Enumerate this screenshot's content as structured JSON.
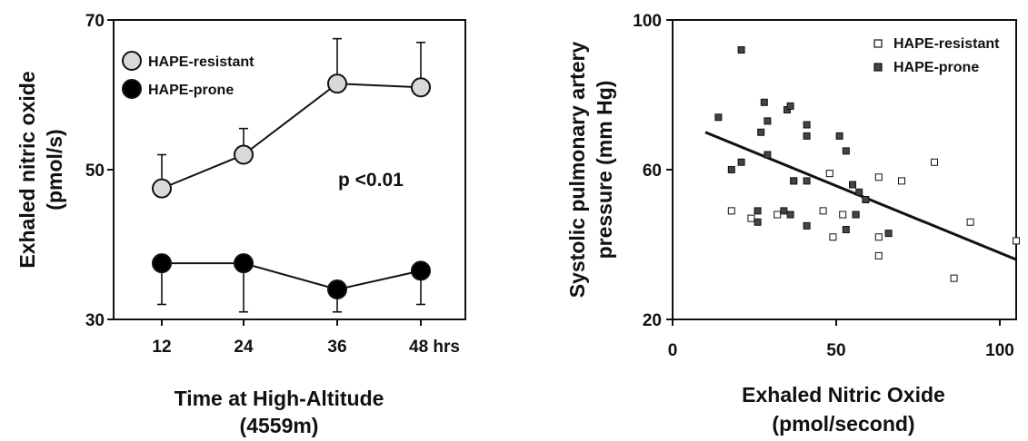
{
  "chart_data": [
    {
      "type": "line",
      "xlabel": "Time at High-Altitude",
      "xlabel_line2": "(4559m)",
      "ylabel": "Exhaled nitric oxide",
      "ylabel_line2": "(pmol/s)",
      "x": [
        12,
        24,
        36,
        48
      ],
      "x_tick_labels": [
        "12",
        "24",
        "36",
        "48 hrs"
      ],
      "y_ticks": [
        30,
        50,
        70
      ],
      "ylim": [
        30,
        70
      ],
      "annotation": "p <0.01",
      "legend_position": "top-left",
      "series": [
        {
          "name": "HAPE-resistant",
          "color": "#d9d9d9",
          "values": [
            47.5,
            52.0,
            61.5,
            61.0
          ],
          "error": [
            4.5,
            3.5,
            6.0,
            6.0
          ]
        },
        {
          "name": "HAPE-prone",
          "color": "#000000",
          "values": [
            37.5,
            37.5,
            34.0,
            36.5
          ],
          "error": [
            5.5,
            6.5,
            3.0,
            4.5
          ]
        }
      ]
    },
    {
      "type": "scatter",
      "xlabel": "Exhaled Nitric Oxide",
      "xlabel_line2": "(pmol/second)",
      "ylabel": "Systolic pulmonary artery",
      "ylabel_line2": "pressure (mm Hg)",
      "x_ticks": [
        0,
        50,
        100
      ],
      "y_ticks": [
        20,
        60,
        100
      ],
      "xlim": [
        0,
        105
      ],
      "ylim": [
        20,
        100
      ],
      "legend_position": "top-right",
      "series": [
        {
          "name": "HAPE-resistant",
          "color": "#ffffff",
          "points": [
            [
              18,
              49
            ],
            [
              24,
              47
            ],
            [
              32,
              48
            ],
            [
              37,
              57
            ],
            [
              46,
              49
            ],
            [
              49,
              42
            ],
            [
              48,
              59
            ],
            [
              52,
              48
            ],
            [
              56,
              48
            ],
            [
              63,
              58
            ],
            [
              63,
              42
            ],
            [
              63,
              37
            ],
            [
              70,
              57
            ],
            [
              80,
              62
            ],
            [
              86,
              31
            ],
            [
              91,
              46
            ],
            [
              105,
              41
            ]
          ]
        },
        {
          "name": "HAPE-prone",
          "color": "#444444",
          "points": [
            [
              21,
              92
            ],
            [
              14,
              74
            ],
            [
              18,
              60
            ],
            [
              21,
              62
            ],
            [
              27,
              70
            ],
            [
              28,
              78
            ],
            [
              29,
              73
            ],
            [
              29,
              64
            ],
            [
              34,
              49
            ],
            [
              35,
              76
            ],
            [
              36,
              77
            ],
            [
              36,
              48
            ],
            [
              37,
              57
            ],
            [
              26,
              49
            ],
            [
              26,
              46
            ],
            [
              41,
              72
            ],
            [
              41,
              69
            ],
            [
              41,
              57
            ],
            [
              41,
              45
            ],
            [
              51,
              69
            ],
            [
              53,
              65
            ],
            [
              53,
              44
            ],
            [
              55,
              56
            ],
            [
              57,
              54
            ],
            [
              56,
              48
            ],
            [
              59,
              52
            ],
            [
              66,
              43
            ]
          ]
        }
      ],
      "trendline": {
        "x": [
          10,
          105
        ],
        "y": [
          70,
          36
        ]
      }
    }
  ]
}
